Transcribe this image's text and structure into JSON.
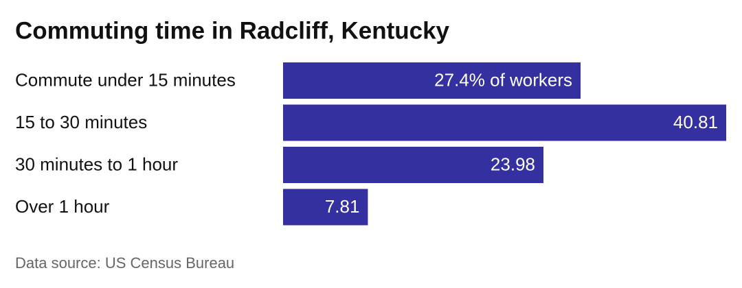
{
  "chart_data": {
    "type": "bar",
    "orientation": "horizontal",
    "title": "Commuting time in Radcliff, Kentucky",
    "categories": [
      "Commute under 15 minutes",
      "15 to 30 minutes",
      "30 minutes to 1 hour",
      "Over 1 hour"
    ],
    "values": [
      27.4,
      40.81,
      23.98,
      7.81
    ],
    "value_labels": [
      "27.4% of workers",
      "40.81",
      "23.98",
      "7.81"
    ],
    "color": "#3430a0",
    "source": "Data source: US Census Bureau"
  }
}
